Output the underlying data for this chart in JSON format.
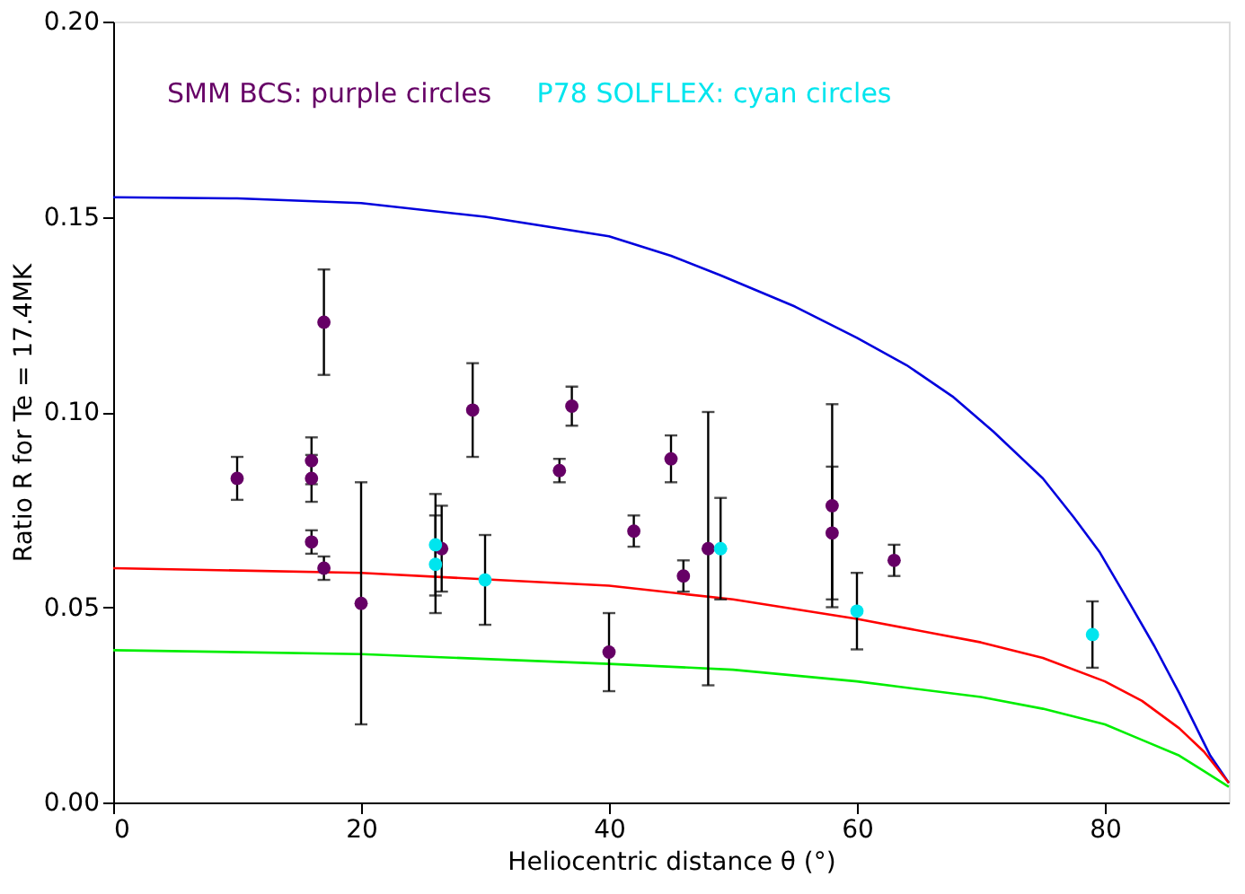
{
  "chart_data": {
    "type": "scatter",
    "xlabel": "Heliocentric distance θ (°)",
    "ylabel": "Ratio R for Te = 17.4MK",
    "annotations": [
      "SMM BCS: purple circles",
      "P78 SOLFLEX: cyan circles"
    ],
    "xlim": [
      0,
      90
    ],
    "xticks": [
      0,
      20,
      40,
      60,
      80
    ],
    "ylim": [
      0,
      0.2
    ],
    "yticks": [
      {
        "value": 0,
        "label": "0.00"
      },
      {
        "value": 0.05,
        "label": "0.05"
      },
      {
        "value": 0.1,
        "label": "0.10"
      },
      {
        "value": 0.15,
        "label": "0.15"
      },
      {
        "value": 0.2,
        "label": "0.20"
      }
    ],
    "grid": false,
    "series": [
      {
        "marker": "circle",
        "color": "#660066",
        "x": [
          10,
          16,
          16,
          16,
          17,
          17,
          20,
          26.5,
          29,
          36,
          37,
          40,
          42,
          45,
          46,
          48,
          58,
          58,
          63
        ],
        "values": [
          0.083,
          0.0875,
          0.083,
          0.0667,
          0.123,
          0.06,
          0.051,
          0.065,
          0.1005,
          0.085,
          0.1015,
          0.0385,
          0.0695,
          0.088,
          0.058,
          0.065,
          0.076,
          0.069,
          0.062
        ],
        "errors": [
          0.0055,
          0.006,
          0.006,
          0.003,
          0.0135,
          0.003,
          0.031,
          0.011,
          0.012,
          0.003,
          0.005,
          0.01,
          0.004,
          0.006,
          0.004,
          0.035,
          0.026,
          0.017,
          0.004
        ]
      },
      {
        "marker": "circle",
        "color": "#00e5ee",
        "x": [
          26,
          26,
          30,
          49,
          60,
          79
        ],
        "values": [
          0.066,
          0.061,
          0.057,
          0.065,
          0.049,
          0.043
        ],
        "errors": [
          0.013,
          0.0125,
          0.0115,
          0.013,
          0.0098,
          0.0085
        ]
      },
      {
        "type": "line",
        "color": "#0000dd",
        "x": [
          0,
          10,
          20,
          30,
          40,
          45,
          49,
          55,
          60,
          64,
          67.7,
          71,
          75,
          77.5,
          79.6,
          82,
          84,
          86,
          88.5,
          90
        ],
        "values": [
          0.155,
          0.1547,
          0.1535,
          0.15,
          0.145,
          0.14,
          0.135,
          0.127,
          0.119,
          0.112,
          0.104,
          0.095,
          0.083,
          0.073,
          0.064,
          0.051,
          0.04,
          0.028,
          0.012,
          0.005
        ]
      },
      {
        "type": "line",
        "color": "#ff0000",
        "x": [
          0,
          20,
          40,
          50,
          60,
          70,
          75,
          80,
          83,
          86,
          88,
          90
        ],
        "values": [
          0.06,
          0.0588,
          0.0555,
          0.052,
          0.047,
          0.041,
          0.037,
          0.031,
          0.026,
          0.019,
          0.013,
          0.005
        ]
      },
      {
        "type": "line",
        "color": "#00ee00",
        "x": [
          0,
          20,
          40,
          50,
          60,
          70,
          75,
          80,
          83,
          86,
          88,
          90
        ],
        "values": [
          0.039,
          0.038,
          0.0355,
          0.034,
          0.031,
          0.027,
          0.024,
          0.02,
          0.016,
          0.012,
          0.008,
          0.004
        ]
      }
    ]
  }
}
